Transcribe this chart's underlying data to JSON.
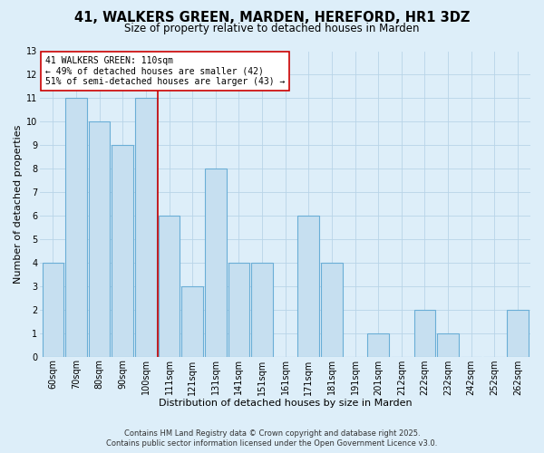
{
  "title": "41, WALKERS GREEN, MARDEN, HEREFORD, HR1 3DZ",
  "subtitle": "Size of property relative to detached houses in Marden",
  "xlabel": "Distribution of detached houses by size in Marden",
  "ylabel": "Number of detached properties",
  "categories": [
    "60sqm",
    "70sqm",
    "80sqm",
    "90sqm",
    "100sqm",
    "111sqm",
    "121sqm",
    "131sqm",
    "141sqm",
    "151sqm",
    "161sqm",
    "171sqm",
    "181sqm",
    "191sqm",
    "201sqm",
    "212sqm",
    "222sqm",
    "232sqm",
    "242sqm",
    "252sqm",
    "262sqm"
  ],
  "values": [
    4,
    11,
    10,
    9,
    11,
    6,
    3,
    8,
    4,
    4,
    0,
    6,
    4,
    0,
    1,
    0,
    2,
    1,
    0,
    0,
    2
  ],
  "bar_color": "#c6dff0",
  "bar_edge_color": "#6aaed6",
  "vline_color": "#cc0000",
  "annotation_title": "41 WALKERS GREEN: 110sqm",
  "annotation_line2": "← 49% of detached houses are smaller (42)",
  "annotation_line3": "51% of semi-detached houses are larger (43) →",
  "annotation_box_color": "#ffffff",
  "annotation_box_edge": "#cc0000",
  "ylim": [
    0,
    13
  ],
  "yticks": [
    0,
    1,
    2,
    3,
    4,
    5,
    6,
    7,
    8,
    9,
    10,
    11,
    12,
    13
  ],
  "footer_line1": "Contains HM Land Registry data © Crown copyright and database right 2025.",
  "footer_line2": "Contains public sector information licensed under the Open Government Licence v3.0.",
  "bg_color": "#ddeef9",
  "plot_bg_color": "#ddeef9",
  "title_fontsize": 10.5,
  "subtitle_fontsize": 8.5,
  "axis_label_fontsize": 8,
  "tick_fontsize": 7,
  "footer_fontsize": 6
}
